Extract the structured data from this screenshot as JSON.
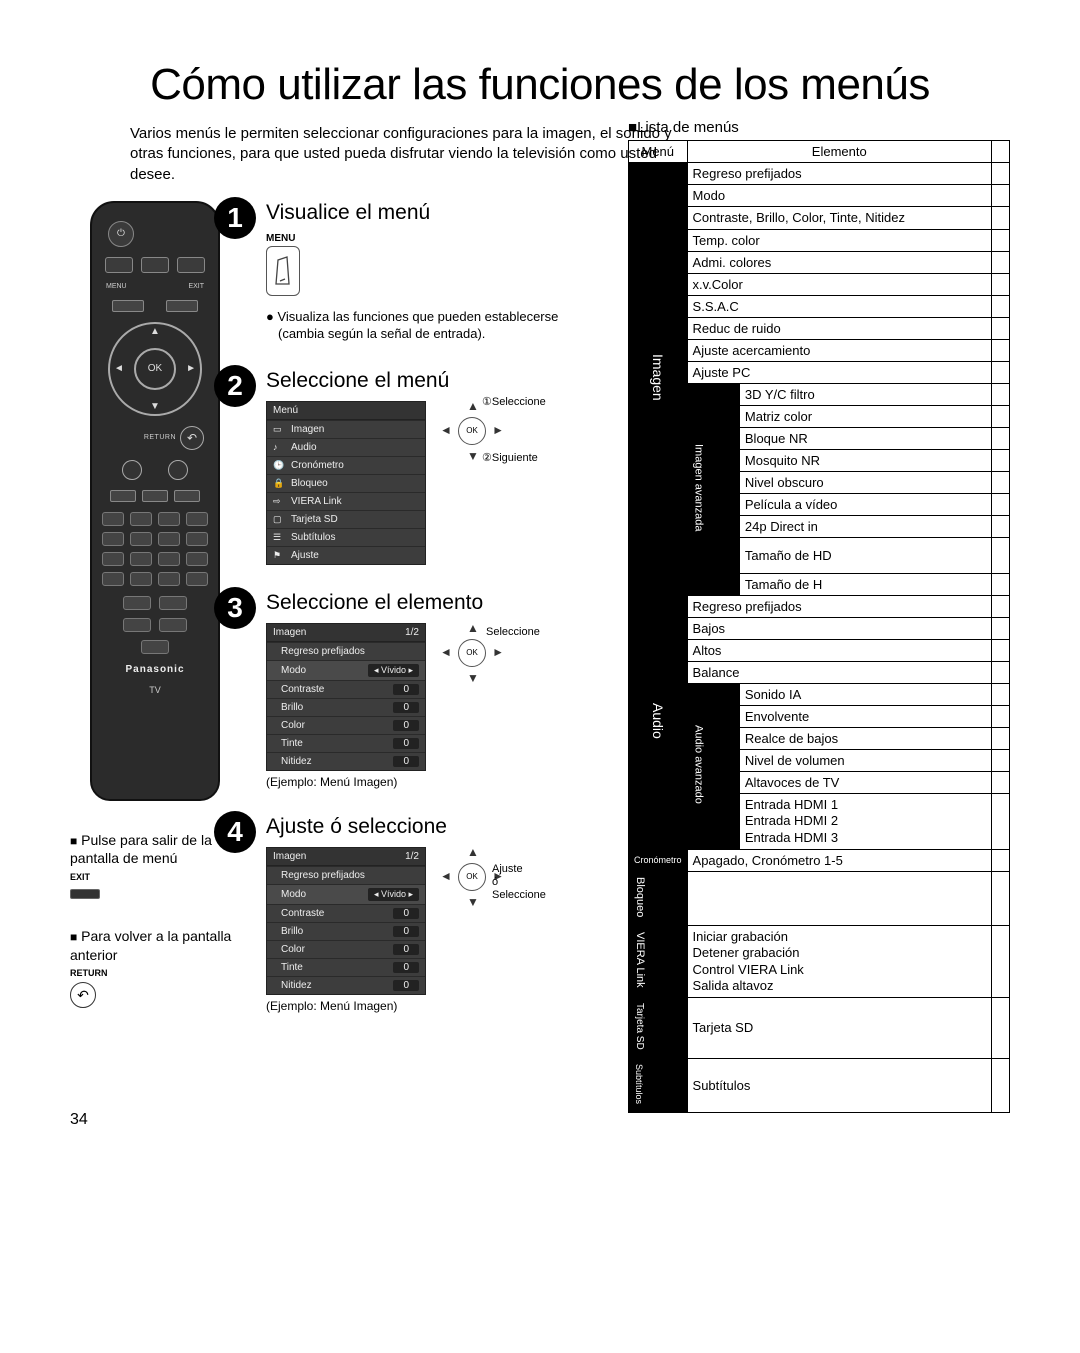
{
  "page_number": "34",
  "title": "Cómo utilizar las funciones de los menús",
  "intro": "Varios menús le permiten seleccionar configuraciones para la imagen, el sonido y otras funciones, para que usted pueda disfrutar viendo la televisión como usted desee.",
  "remote": {
    "menu_label": "MENU",
    "exit_label": "EXIT",
    "ok_label": "OK",
    "return_label": "RETURN",
    "brand": "Panasonic",
    "tv": "TV"
  },
  "left_notes": {
    "exit_label": "EXIT",
    "exit_text": "Pulse para salir de la pantalla de menú",
    "return_text": "Para volver a la pantalla anterior",
    "return_label": "RETURN"
  },
  "steps": {
    "s1": {
      "title": "Visualice el menú",
      "menu_label": "MENU",
      "note": "Visualiza las funciones que pueden establecerse (cambia según la señal de entrada)."
    },
    "s2": {
      "title": "Seleccione el menú",
      "ok_label": "OK",
      "select_label": "Seleccione",
      "next_label": "Siguiente",
      "circle1": "①",
      "circle2": "②",
      "menu": {
        "title": "Menú",
        "items": [
          "Imagen",
          "Audio",
          "Cronómetro",
          "Bloqueo",
          "VIERA Link",
          "Tarjeta SD",
          "Subtítulos",
          "Ajuste"
        ]
      }
    },
    "s3": {
      "title": "Seleccione el elemento",
      "ok_label": "OK",
      "select_label": "Seleccione",
      "caption": "(Ejemplo: Menú Imagen)",
      "menu": {
        "title": "Imagen",
        "page": "1/2",
        "rows": [
          {
            "label": "Regreso prefijados",
            "value": ""
          },
          {
            "label": "Modo",
            "value": "Vívido",
            "sel": true
          },
          {
            "label": "Contraste",
            "value": "0"
          },
          {
            "label": "Brillo",
            "value": "0"
          },
          {
            "label": "Color",
            "value": "0"
          },
          {
            "label": "Tinte",
            "value": "0"
          },
          {
            "label": "Nitidez",
            "value": "0"
          }
        ]
      }
    },
    "s4": {
      "title": "Ajuste ó seleccione",
      "ok_label": "OK",
      "adjust_label": "Ajuste",
      "or_label": "ó",
      "select_label": "Seleccione",
      "caption": "(Ejemplo: Menú Imagen)",
      "menu_title": "Imagen",
      "menu_page": "1/2"
    }
  },
  "menulist": {
    "heading": "Lista de menús",
    "col_menu": "Menú",
    "col_elem": "Elemento",
    "imagen": {
      "label": "Imagen",
      "rows": [
        "Regreso prefijados",
        "Modo",
        "Contraste, Brillo, Color, Tinte, Nitidez",
        "Temp. color",
        "Admi. colores",
        "x.v.Color",
        "S.S.A.C",
        "Reduc de ruido",
        "Ajuste acercamiento",
        "Ajuste PC"
      ],
      "adv_label": "Imagen avanzada",
      "adv_rows": [
        "3D Y/C filtro",
        "Matriz color",
        "Bloque NR",
        "Mosquito NR",
        "Nivel obscuro",
        "Película a vídeo",
        "24p Direct in",
        "Tamaño de HD",
        "Tamaño de H"
      ]
    },
    "audio": {
      "label": "Audio",
      "rows": [
        "Regreso prefijados",
        "Bajos",
        "Altos",
        "Balance"
      ],
      "adv_label": "Audio avanzado",
      "adv_rows": [
        "Sonido IA",
        "Envolvente",
        "Realce de bajos",
        "Nivel de volumen",
        "Altavoces de TV",
        "Entrada HDMI 1\nEntrada HDMI 2\nEntrada HDMI 3"
      ]
    },
    "crono": {
      "label": "Cronómetro",
      "row": "Apagado, Cronómetro 1-5"
    },
    "bloqueo": {
      "label": "Bloqueo",
      "row": ""
    },
    "viera": {
      "label": "VIERA Link",
      "row": "Iniciar grabación\nDetener grabación\nControl VIERA Link\nSalida altavoz"
    },
    "tarjeta": {
      "label": "Tarjeta SD",
      "row": "Tarjeta SD"
    },
    "subt": {
      "label": "Subtítulos",
      "row": "Subtítulos"
    }
  },
  "colors": {
    "bg": "#ffffff",
    "text": "#000000",
    "dark_panel": "#3d3d3d",
    "black": "#000000"
  }
}
